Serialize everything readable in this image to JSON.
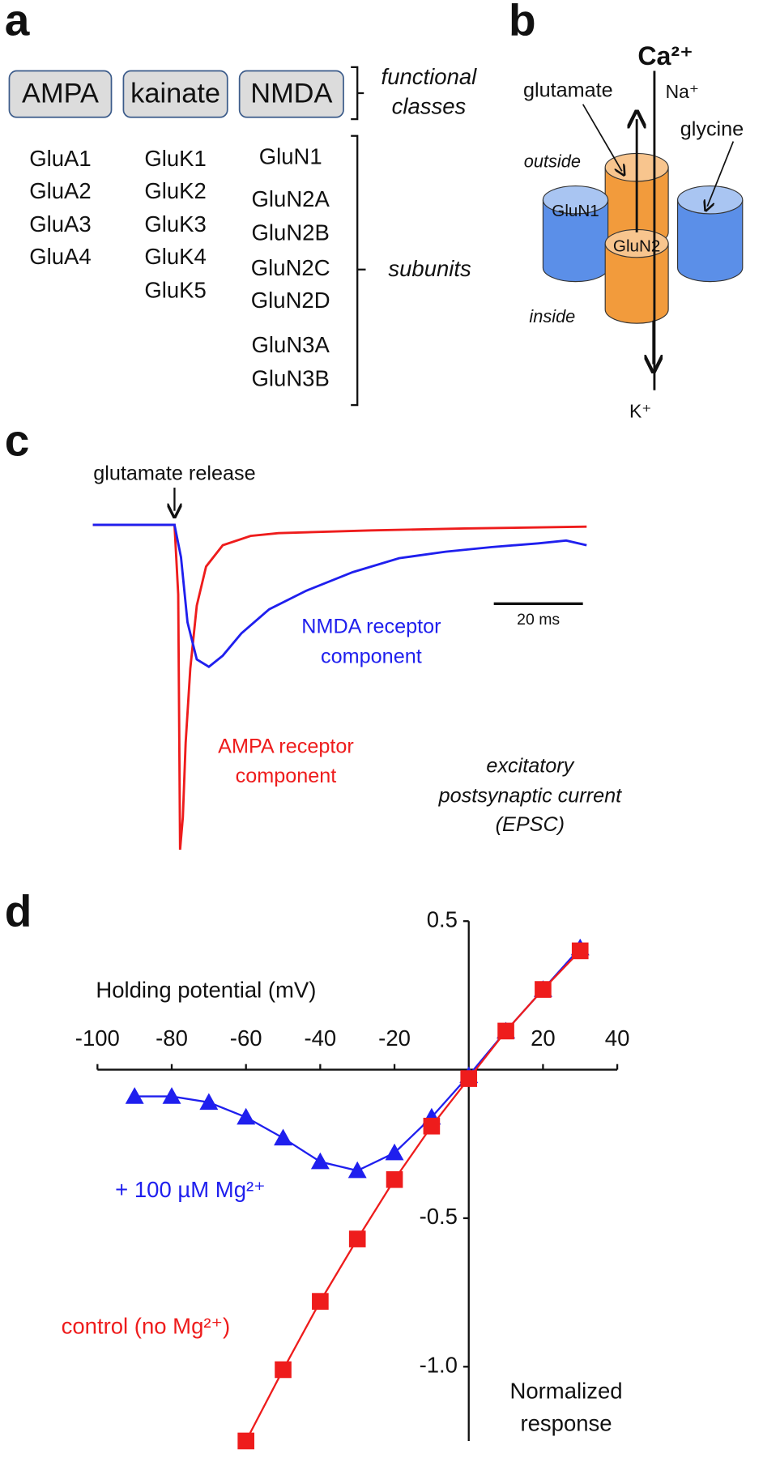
{
  "panel_labels": [
    "a",
    "b",
    "c",
    "d"
  ],
  "panel_a": {
    "classes": [
      "AMPA",
      "kainate",
      "NMDA"
    ],
    "class_bracket_label": [
      "functional",
      "classes"
    ],
    "subunits": [
      [
        "GluA1",
        "GluA2",
        "GluA3",
        "GluA4"
      ],
      [
        "GluK1",
        "GluK2",
        "GluK3",
        "GluK4",
        "GluK5"
      ],
      [
        "GluN1",
        "GluN2A",
        "GluN2B",
        "GluN2C",
        "GluN2D",
        "GluN3A",
        "GluN3B"
      ]
    ],
    "subunit_bracket_label": "subunits"
  },
  "panel_b": {
    "ion_top": "Ca²⁺",
    "ion_top_2": "Na⁺",
    "ion_bottom": "K⁺",
    "agonist_1": "glutamate",
    "agonist_2": "glycine",
    "outside": "outside",
    "inside": "inside",
    "subunit_1": "GluN1",
    "subunit_2": "GluN2"
  },
  "panel_c": {
    "annotation": "glutamate release",
    "scale_bar": "20 ms",
    "nmda_label": [
      "NMDA receptor",
      "component"
    ],
    "ampa_label": [
      "AMPA receptor",
      "component"
    ],
    "epsc_label": [
      "excitatory",
      "postsynaptic current",
      "(EPSC)"
    ]
  },
  "chart_data": {
    "type": "line",
    "x_label": "Holding potential (mV)",
    "y_label": [
      "Normalized",
      "response"
    ],
    "xlim": [
      -100,
      40
    ],
    "ylim": [
      -1.25,
      0.5
    ],
    "xticks": [
      -100,
      -80,
      -60,
      -40,
      -20,
      20,
      40
    ],
    "yticks": [
      0.5,
      -0.5,
      {
        "value": -1,
        "label": "-1.0"
      }
    ],
    "x": [
      -90,
      -80,
      -70,
      -60,
      -50,
      -40,
      -30,
      -20,
      -10,
      0,
      10,
      20,
      30
    ],
    "series": [
      {
        "name": "+ 100 µM Mg²⁺",
        "color": "#1f1fee",
        "marker": "triangle",
        "values": [
          -0.09,
          -0.09,
          -0.11,
          -0.16,
          -0.23,
          -0.31,
          -0.34,
          -0.28,
          -0.16,
          -0.02,
          0.13,
          0.27,
          0.41
        ]
      },
      {
        "name": "control (no Mg²⁺)",
        "color": "#ee1c1c",
        "marker": "square",
        "values": [
          null,
          null,
          null,
          -1.25,
          -1.01,
          -0.78,
          -0.57,
          -0.37,
          -0.19,
          -0.03,
          0.13,
          0.27,
          0.4
        ]
      }
    ]
  }
}
